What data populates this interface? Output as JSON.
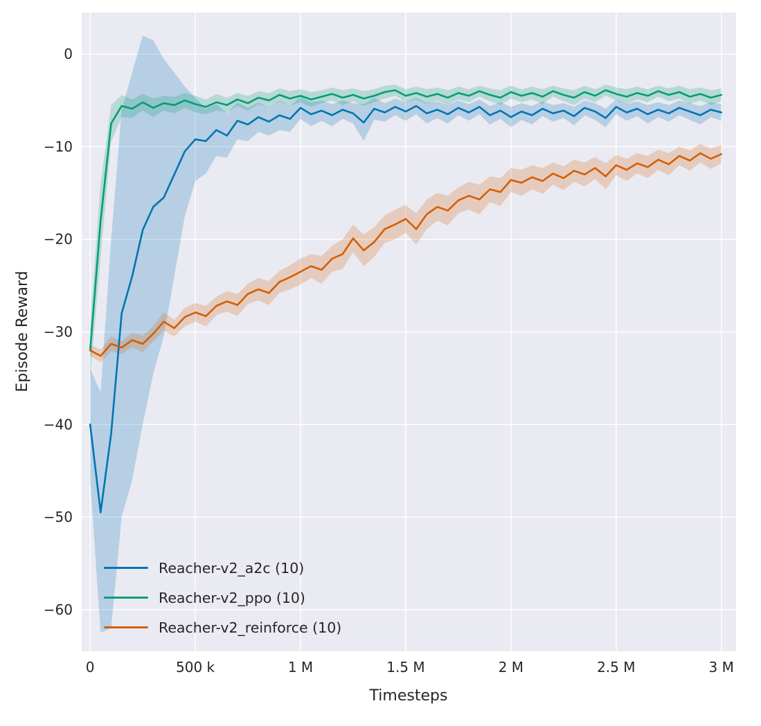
{
  "chart_data": {
    "type": "line",
    "title": "",
    "xlabel": "Timesteps",
    "ylabel": "Episode Reward",
    "xlim": [
      -40000,
      3070000
    ],
    "ylim": [
      -64.5,
      4.5
    ],
    "grid": true,
    "legend_position": "lower left",
    "plot_bg": "#eaeaf2",
    "grid_color": "#ffffff",
    "text_color": "#262626",
    "x_ticks": {
      "values": [
        0,
        500000,
        1000000,
        1500000,
        2000000,
        2500000,
        3000000
      ],
      "labels": [
        "0",
        "500 k",
        "1 M",
        "1.5 M",
        "2 M",
        "2.5 M",
        "3 M"
      ]
    },
    "y_ticks": {
      "values": [
        0,
        -10,
        -20,
        -30,
        -40,
        -50,
        -60
      ],
      "labels": [
        "0",
        "−10",
        "−20",
        "−30",
        "−40",
        "−50",
        "−60"
      ]
    },
    "x": [
      0,
      50000,
      100000,
      150000,
      200000,
      250000,
      300000,
      350000,
      400000,
      450000,
      500000,
      550000,
      600000,
      650000,
      700000,
      750000,
      800000,
      850000,
      900000,
      950000,
      1000000,
      1050000,
      1100000,
      1150000,
      1200000,
      1250000,
      1300000,
      1350000,
      1400000,
      1450000,
      1500000,
      1550000,
      1600000,
      1650000,
      1700000,
      1750000,
      1800000,
      1850000,
      1900000,
      1950000,
      2000000,
      2050000,
      2100000,
      2150000,
      2200000,
      2250000,
      2300000,
      2350000,
      2400000,
      2450000,
      2500000,
      2550000,
      2600000,
      2650000,
      2700000,
      2750000,
      2800000,
      2850000,
      2900000,
      2950000,
      3000000
    ],
    "series": [
      {
        "name": "Reacher-v2_a2c (10)",
        "color": "#0173b2",
        "values": [
          -40.0,
          -49.5,
          -41.0,
          -28.0,
          -24.0,
          -19.0,
          -16.5,
          -15.5,
          -13.0,
          -10.5,
          -9.2,
          -9.4,
          -8.2,
          -8.8,
          -7.2,
          -7.6,
          -6.8,
          -7.3,
          -6.6,
          -7.0,
          -5.8,
          -6.5,
          -6.1,
          -6.6,
          -6.0,
          -6.4,
          -7.4,
          -5.9,
          -6.3,
          -5.7,
          -6.2,
          -5.6,
          -6.4,
          -6.0,
          -6.5,
          -5.8,
          -6.3,
          -5.7,
          -6.6,
          -6.1,
          -6.8,
          -6.2,
          -6.6,
          -5.9,
          -6.4,
          -6.1,
          -6.7,
          -5.8,
          -6.2,
          -6.9,
          -5.7,
          -6.3,
          -5.9,
          -6.5,
          -6.0,
          -6.4,
          -5.8,
          -6.2,
          -6.6,
          -6.0,
          -6.3
        ],
        "band": [
          6,
          13,
          21,
          22,
          22,
          21,
          18,
          15,
          11,
          7,
          4.5,
          3.5,
          2.8,
          2.4,
          2.0,
          1.8,
          1.6,
          1.5,
          1.6,
          1.4,
          1.2,
          1.3,
          1.1,
          1.2,
          1.0,
          1.1,
          2.0,
          1.2,
          1.0,
          0.9,
          1.0,
          0.9,
          1.1,
          0.9,
          1.0,
          0.8,
          0.9,
          0.8,
          1.0,
          0.9,
          1.1,
          0.9,
          1.0,
          0.8,
          0.9,
          0.8,
          1.0,
          0.8,
          0.9,
          1.0,
          0.8,
          0.9,
          0.8,
          1.0,
          0.8,
          0.9,
          0.8,
          0.9,
          1.0,
          0.8,
          0.9
        ]
      },
      {
        "name": "Reacher-v2_ppo (10)",
        "color": "#029e73",
        "values": [
          -32.0,
          -18.0,
          -7.5,
          -5.6,
          -5.9,
          -5.2,
          -5.8,
          -5.3,
          -5.5,
          -5.0,
          -5.4,
          -5.7,
          -5.2,
          -5.5,
          -4.9,
          -5.3,
          -4.7,
          -5.0,
          -4.4,
          -4.8,
          -4.5,
          -4.9,
          -4.6,
          -4.3,
          -4.7,
          -4.4,
          -4.8,
          -4.5,
          -4.1,
          -3.9,
          -4.5,
          -4.2,
          -4.6,
          -4.3,
          -4.7,
          -4.2,
          -4.5,
          -4.0,
          -4.4,
          -4.7,
          -4.1,
          -4.5,
          -4.2,
          -4.6,
          -4.0,
          -4.4,
          -4.7,
          -4.1,
          -4.5,
          -3.9,
          -4.3,
          -4.6,
          -4.2,
          -4.5,
          -4.0,
          -4.4,
          -4.1,
          -4.6,
          -4.3,
          -4.7,
          -4.4
        ],
        "band": [
          3.0,
          4.0,
          2.0,
          1.2,
          1.0,
          0.9,
          1.0,
          0.8,
          0.9,
          0.8,
          0.9,
          0.8,
          0.9,
          0.8,
          0.7,
          0.8,
          0.7,
          0.8,
          0.7,
          0.8,
          0.7,
          0.8,
          0.7,
          0.7,
          0.8,
          0.7,
          0.8,
          0.7,
          0.7,
          0.6,
          0.7,
          0.7,
          0.8,
          0.7,
          0.8,
          0.7,
          0.7,
          0.6,
          0.7,
          0.8,
          0.7,
          0.7,
          0.7,
          0.8,
          0.6,
          0.7,
          0.8,
          0.7,
          0.7,
          0.6,
          0.7,
          0.8,
          0.7,
          0.7,
          0.6,
          0.7,
          0.7,
          0.8,
          0.7,
          0.8,
          0.7
        ]
      },
      {
        "name": "Reacher-v2_reinforce (10)",
        "color": "#d55e00",
        "values": [
          -32.0,
          -32.6,
          -31.3,
          -31.7,
          -30.9,
          -31.3,
          -30.2,
          -28.9,
          -29.6,
          -28.4,
          -27.9,
          -28.3,
          -27.2,
          -26.7,
          -27.1,
          -25.9,
          -25.4,
          -25.8,
          -24.6,
          -24.1,
          -23.5,
          -22.9,
          -23.3,
          -22.1,
          -21.6,
          -19.9,
          -21.2,
          -20.3,
          -18.9,
          -18.4,
          -17.8,
          -18.9,
          -17.3,
          -16.5,
          -16.9,
          -15.8,
          -15.3,
          -15.7,
          -14.6,
          -14.9,
          -13.6,
          -13.9,
          -13.3,
          -13.7,
          -12.9,
          -13.4,
          -12.6,
          -13.0,
          -12.3,
          -13.2,
          -12.0,
          -12.5,
          -11.8,
          -12.2,
          -11.4,
          -11.9,
          -11.0,
          -11.5,
          -10.7,
          -11.3,
          -10.8
        ],
        "band": [
          0.6,
          0.7,
          0.8,
          0.7,
          0.8,
          0.9,
          0.8,
          1.0,
          0.9,
          1.0,
          1.0,
          1.1,
          1.0,
          1.1,
          1.2,
          1.1,
          1.2,
          1.3,
          1.2,
          1.3,
          1.4,
          1.3,
          1.5,
          1.4,
          1.6,
          1.5,
          1.7,
          1.6,
          1.5,
          1.6,
          1.5,
          1.7,
          1.6,
          1.5,
          1.6,
          1.4,
          1.5,
          1.6,
          1.4,
          1.5,
          1.3,
          1.4,
          1.3,
          1.4,
          1.2,
          1.3,
          1.2,
          1.3,
          1.2,
          1.4,
          1.1,
          1.2,
          1.1,
          1.2,
          1.1,
          1.2,
          1.0,
          1.1,
          1.0,
          1.1,
          1.0
        ]
      }
    ]
  }
}
